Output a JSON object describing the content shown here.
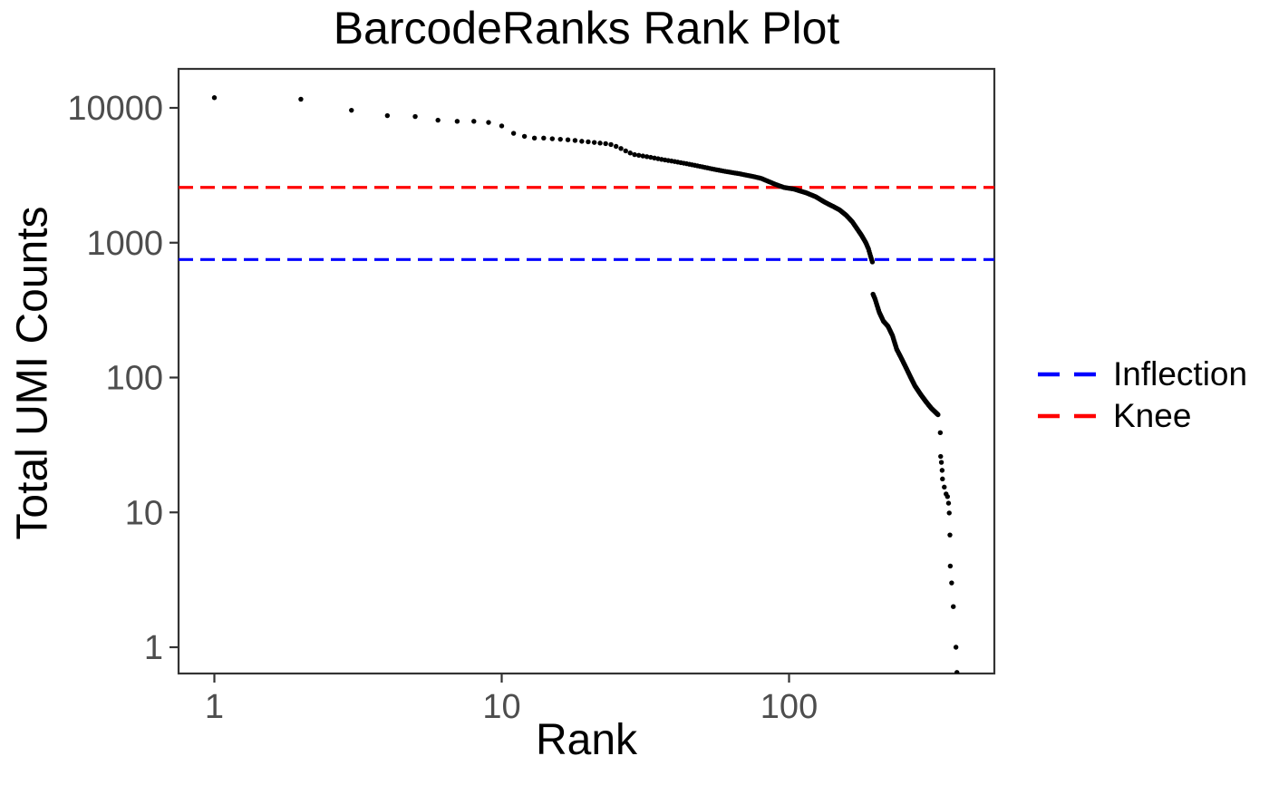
{
  "chart_data": {
    "type": "scatter",
    "title": "BarcodeRanks Rank Plot",
    "xlabel": "Rank",
    "ylabel": "Total UMI Counts",
    "x_scale": "log10",
    "y_scale": "log10",
    "x_ticks": [
      1,
      10,
      100
    ],
    "y_ticks": [
      1,
      10,
      100,
      1000,
      10000
    ],
    "xlim": [
      0.75,
      520
    ],
    "ylim": [
      0.64,
      19500
    ],
    "grid": false,
    "background": "#ffffff",
    "point_color": "#000000",
    "axis_color": "#333333",
    "tick_label_color": "#4D4D4D",
    "legend_position": "right",
    "hlines": [
      {
        "label": "Inflection",
        "value": 750,
        "color": "#0000FF",
        "style": "dashed"
      },
      {
        "label": "Knee",
        "value": 2570,
        "color": "#FF0000",
        "style": "dashed"
      }
    ],
    "series": [
      {
        "name": "barcode-rank-curve",
        "render": "interpolate-integer-ranks",
        "points": [
          [
            1,
            11900
          ],
          [
            2,
            11600
          ],
          [
            3,
            9600
          ],
          [
            4,
            8760
          ],
          [
            5,
            8620
          ],
          [
            6,
            8100
          ],
          [
            7,
            7950
          ],
          [
            8,
            7950
          ],
          [
            9,
            7800
          ],
          [
            10,
            7350
          ],
          [
            11,
            6480
          ],
          [
            12,
            6150
          ],
          [
            13,
            5970
          ],
          [
            14,
            5970
          ],
          [
            15,
            5900
          ],
          [
            16,
            5850
          ],
          [
            17,
            5800
          ],
          [
            18,
            5730
          ],
          [
            19,
            5650
          ],
          [
            20,
            5600
          ],
          [
            21,
            5540
          ],
          [
            22,
            5480
          ],
          [
            23,
            5430
          ],
          [
            24,
            5350
          ],
          [
            25,
            5180
          ],
          [
            26,
            5000
          ],
          [
            27,
            4800
          ],
          [
            28,
            4630
          ],
          [
            29,
            4500
          ],
          [
            30,
            4450
          ],
          [
            33,
            4300
          ],
          [
            36,
            4150
          ],
          [
            40,
            4000
          ],
          [
            45,
            3820
          ],
          [
            50,
            3650
          ],
          [
            55,
            3500
          ],
          [
            60,
            3380
          ],
          [
            67,
            3250
          ],
          [
            75,
            3100
          ],
          [
            80,
            3000
          ],
          [
            90,
            2700
          ],
          [
            96,
            2570
          ],
          [
            104,
            2500
          ],
          [
            115,
            2340
          ],
          [
            124,
            2190
          ],
          [
            133,
            2000
          ],
          [
            143,
            1850
          ],
          [
            150,
            1750
          ],
          [
            158,
            1600
          ],
          [
            166,
            1430
          ],
          [
            172,
            1280
          ],
          [
            179,
            1130
          ],
          [
            185,
            1000
          ],
          [
            189,
            900
          ],
          [
            192,
            800
          ],
          [
            195,
            720
          ],
          [
            196,
            415
          ],
          [
            199,
            385
          ],
          [
            206,
            305
          ],
          [
            213,
            262
          ],
          [
            221,
            240
          ],
          [
            229,
            205
          ],
          [
            237,
            162
          ],
          [
            246,
            139
          ],
          [
            255,
            119
          ],
          [
            264,
            102
          ],
          [
            274,
            87
          ],
          [
            287,
            75
          ],
          [
            300,
            66
          ],
          [
            313,
            59
          ],
          [
            330,
            53
          ]
        ]
      },
      {
        "name": "barcode-rank-tail",
        "render": "exact",
        "points": [
          [
            336,
            39
          ],
          [
            337,
            26
          ],
          [
            339,
            23.5
          ],
          [
            341,
            20.5
          ],
          [
            342,
            17.7
          ],
          [
            347,
            15.4
          ],
          [
            352,
            13.7
          ],
          [
            356,
            13.1
          ],
          [
            359,
            11.7
          ],
          [
            361,
            9.9
          ],
          [
            363,
            6.8
          ],
          [
            364,
            4.0
          ],
          [
            368,
            3.0
          ],
          [
            373,
            2.0
          ],
          [
            381,
            1.0
          ],
          [
            384,
            0.65
          ]
        ]
      }
    ]
  }
}
